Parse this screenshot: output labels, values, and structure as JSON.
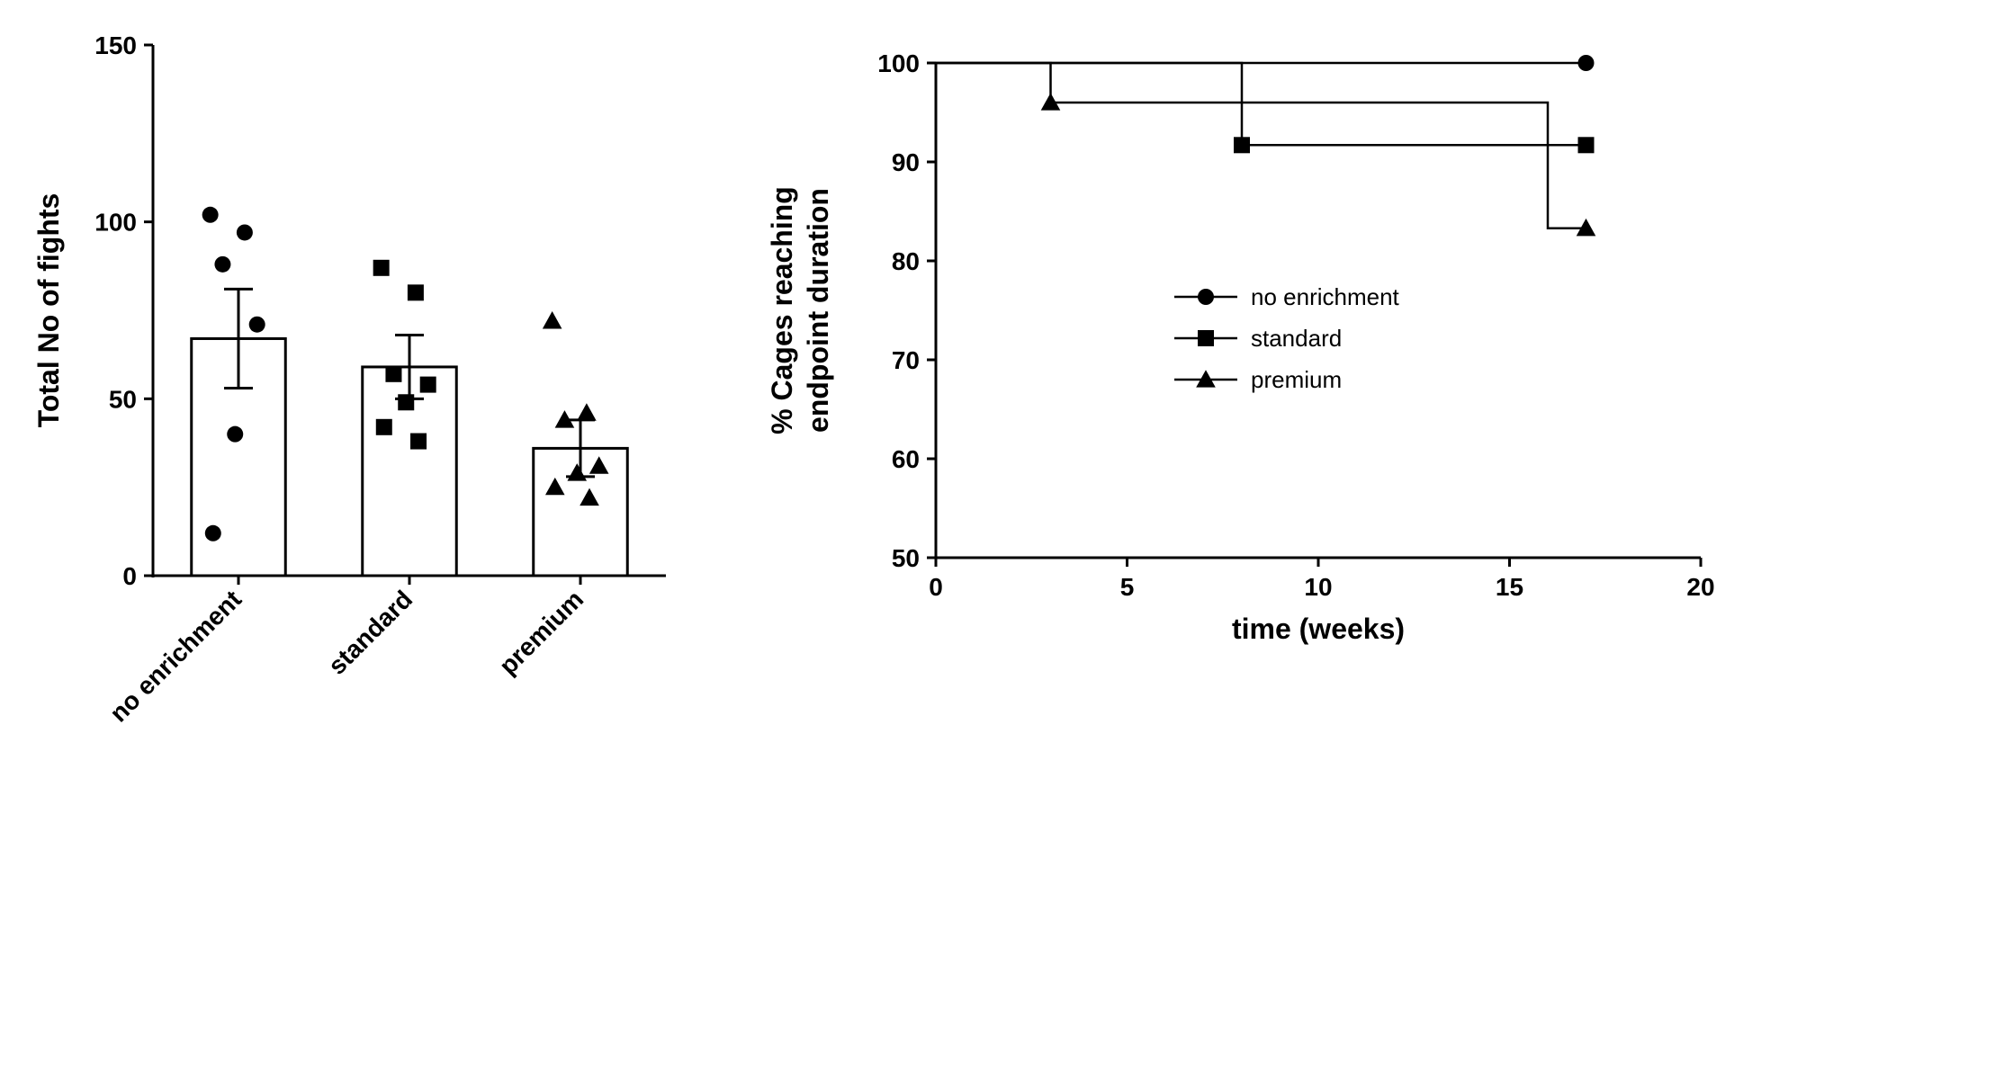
{
  "bar_chart": {
    "type": "bar_with_scatter",
    "ylabel": "Total No of fights",
    "ylim": [
      0,
      150
    ],
    "yticks": [
      0,
      50,
      100,
      150
    ],
    "categories": [
      "no enrichment",
      "standard",
      "premium"
    ],
    "bar_means": [
      67,
      59,
      36
    ],
    "error_low": [
      14,
      9,
      8
    ],
    "error_high": [
      14,
      9,
      8
    ],
    "scatter_points": {
      "no enrichment": [
        102,
        97,
        88,
        71,
        40,
        12
      ],
      "standard": [
        87,
        80,
        57,
        54,
        49,
        42,
        38
      ],
      "premium": [
        72,
        46,
        44,
        31,
        29,
        25,
        22
      ]
    },
    "marker_shapes": {
      "no enrichment": "circle",
      "standard": "square",
      "premium": "triangle"
    },
    "bar_fill": "none",
    "bar_stroke": "#000000",
    "bar_stroke_width": 3,
    "marker_color": "#000000",
    "marker_size": 9,
    "axis_color": "#000000",
    "axis_width": 3,
    "tick_length": 10,
    "label_fontsize": 32,
    "label_fontweight": "bold",
    "tick_fontsize": 28,
    "tick_fontweight": "bold",
    "bar_width_ratio": 0.55,
    "error_cap_width": 16
  },
  "survival_chart": {
    "type": "survival_step",
    "ylabel_line1": "% Cages reaching",
    "ylabel_line2": "endpoint duration",
    "xlabel": "time (weeks)",
    "xlim": [
      0,
      20
    ],
    "xticks": [
      0,
      5,
      10,
      15,
      20
    ],
    "ylim": [
      50,
      100
    ],
    "yticks": [
      50,
      60,
      70,
      80,
      90,
      100
    ],
    "series": [
      {
        "name": "no enrichment",
        "marker": "circle",
        "steps": [
          [
            0,
            100
          ],
          [
            17,
            100
          ]
        ],
        "end_marker": [
          17,
          100
        ]
      },
      {
        "name": "standard",
        "marker": "square",
        "steps": [
          [
            0,
            100
          ],
          [
            8,
            100
          ],
          [
            8,
            91.7
          ],
          [
            17,
            91.7
          ]
        ],
        "tick_marks": [
          [
            8,
            91.7
          ]
        ],
        "end_marker": [
          17,
          91.7
        ]
      },
      {
        "name": "premium",
        "marker": "triangle",
        "steps": [
          [
            0,
            100
          ],
          [
            3,
            100
          ],
          [
            3,
            96
          ],
          [
            16,
            96
          ],
          [
            16,
            83.3
          ],
          [
            17,
            83.3
          ]
        ],
        "tick_marks": [
          [
            3,
            96
          ]
        ],
        "end_marker": [
          17,
          83.3
        ]
      }
    ],
    "legend_items": [
      "no enrichment",
      "standard",
      "premium"
    ],
    "legend_markers": [
      "circle",
      "square",
      "triangle"
    ],
    "line_color": "#000000",
    "line_width": 2.5,
    "marker_color": "#000000",
    "marker_size": 9,
    "axis_color": "#000000",
    "axis_width": 3,
    "tick_length": 10,
    "label_fontsize": 32,
    "label_fontweight": "bold",
    "tick_fontsize": 28,
    "tick_fontweight": "bold",
    "legend_fontsize": 26
  },
  "overall": {
    "background": "#ffffff"
  }
}
